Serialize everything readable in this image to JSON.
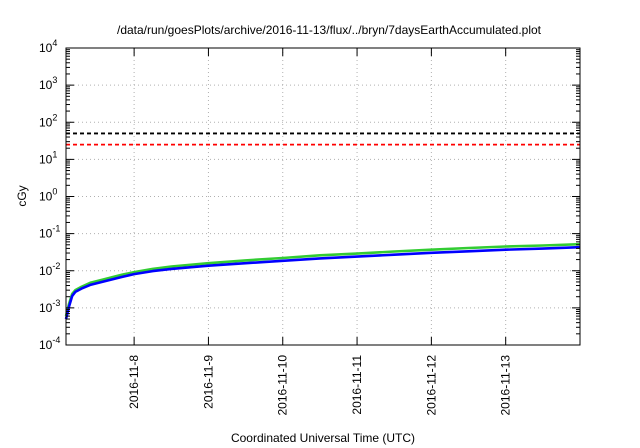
{
  "chart_data": {
    "type": "line",
    "title": "/data/run/goesPlots/archive/2016-11-13/flux/../bryn/7daysEarthAccumulated.plot",
    "xlabel": "Coordinated Universal Time (UTC)",
    "ylabel": "cGy",
    "y_scale": "log",
    "ylim": [
      0.0001,
      10000
    ],
    "xlim": [
      "2016-11-07 02:00",
      "2016-11-14 00:00"
    ],
    "grid": true,
    "legend": "none",
    "x_ticks": [
      "2016-11-8",
      "2016-11-9",
      "2016-11-10",
      "2016-11-11",
      "2016-11-12",
      "2016-11-13"
    ],
    "y_ticks": [
      {
        "base": "10",
        "exp": "-4"
      },
      {
        "base": "10",
        "exp": "-3"
      },
      {
        "base": "10",
        "exp": "-2"
      },
      {
        "base": "10",
        "exp": "-1"
      },
      {
        "base": "10",
        "exp": "0"
      },
      {
        "base": "10",
        "exp": "1"
      },
      {
        "base": "10",
        "exp": "2"
      },
      {
        "base": "10",
        "exp": "3"
      },
      {
        "base": "10",
        "exp": "4"
      }
    ],
    "thresholds": [
      {
        "value": 50,
        "color": "#000000",
        "style": "dashed"
      },
      {
        "value": 25,
        "color": "#ff0000",
        "style": "dashed"
      }
    ],
    "series": [
      {
        "color": "#33cc33",
        "x": [
          "2016-11-07 02:00",
          "2016-11-07 03:00",
          "2016-11-07 04:00",
          "2016-11-07 05:00",
          "2016-11-07 07:00",
          "2016-11-07 10:00",
          "2016-11-07 14:00",
          "2016-11-07 20:00",
          "2016-11-08 00:00",
          "2016-11-08 06:00",
          "2016-11-08 12:00",
          "2016-11-09 00:00",
          "2016-11-09 12:00",
          "2016-11-10 00:00",
          "2016-11-10 12:00",
          "2016-11-11 00:00",
          "2016-11-11 12:00",
          "2016-11-12 00:00",
          "2016-11-12 12:00",
          "2016-11-13 00:00",
          "2016-11-13 12:00",
          "2016-11-14 00:00"
        ],
        "values": [
          0.0006,
          0.0013,
          0.0024,
          0.003,
          0.0037,
          0.0048,
          0.0058,
          0.0078,
          0.0092,
          0.0112,
          0.013,
          0.016,
          0.019,
          0.022,
          0.026,
          0.029,
          0.033,
          0.037,
          0.041,
          0.045,
          0.048,
          0.052
        ]
      },
      {
        "color": "#0000ff",
        "x": [
          "2016-11-07 02:00",
          "2016-11-07 03:00",
          "2016-11-07 04:00",
          "2016-11-07 05:00",
          "2016-11-07 07:00",
          "2016-11-07 10:00",
          "2016-11-07 14:00",
          "2016-11-07 20:00",
          "2016-11-08 00:00",
          "2016-11-08 06:00",
          "2016-11-08 12:00",
          "2016-11-09 00:00",
          "2016-11-09 12:00",
          "2016-11-10 00:00",
          "2016-11-10 12:00",
          "2016-11-11 00:00",
          "2016-11-11 12:00",
          "2016-11-12 00:00",
          "2016-11-12 12:00",
          "2016-11-13 00:00",
          "2016-11-13 12:00",
          "2016-11-14 00:00"
        ],
        "values": [
          0.0005,
          0.0011,
          0.0021,
          0.0027,
          0.0033,
          0.0042,
          0.0051,
          0.0068,
          0.0081,
          0.0098,
          0.0112,
          0.0137,
          0.016,
          0.0185,
          0.0215,
          0.024,
          0.027,
          0.0305,
          0.0335,
          0.037,
          0.0395,
          0.043
        ]
      }
    ]
  }
}
